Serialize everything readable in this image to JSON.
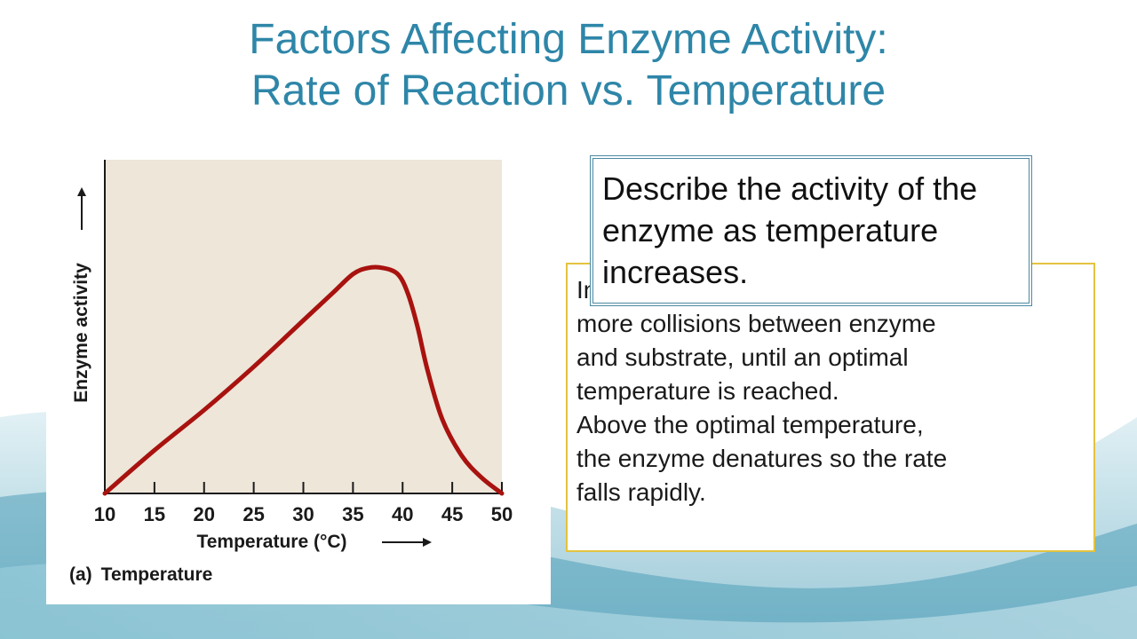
{
  "slide": {
    "title_line1": "Factors Affecting Enzyme Activity:",
    "title_line2": "Rate of Reaction vs. Temperature",
    "question": "Describe the activity of the enzyme as temperature increases.",
    "answer_lines": [
      "Increasing temperature gives",
      "more collisions between enzyme",
      "and substrate, until an optimal",
      "temperature is reached.",
      "Above the optimal temperature,",
      "the enzyme denatures so the rate",
      "falls rapidly."
    ],
    "colors": {
      "title": "#2e86a8",
      "curve": "#a8120f",
      "plot_background": "#ede6d9",
      "question_border": "#4a89a3",
      "answer_border": "#e3c340"
    }
  },
  "chart_data": {
    "type": "line",
    "ylabel": "Enzyme activity",
    "xlabel": "Temperature (°C)",
    "caption_tag": "(a)",
    "caption": "Temperature",
    "xlim": [
      10,
      50
    ],
    "ylim": [
      0,
      1.08
    ],
    "x_ticks": [
      10,
      15,
      20,
      25,
      30,
      35,
      40,
      45,
      50
    ],
    "y_ticks_shown": false,
    "series": [
      {
        "x": [
          10,
          15,
          20,
          25,
          30,
          33,
          35,
          36.5,
          38,
          39.5,
          40.5,
          41.5,
          42.5,
          44,
          46,
          48,
          50
        ],
        "y": [
          0,
          0.14,
          0.27,
          0.41,
          0.56,
          0.65,
          0.71,
          0.73,
          0.73,
          0.71,
          0.65,
          0.54,
          0.4,
          0.24,
          0.12,
          0.05,
          0
        ]
      }
    ]
  }
}
